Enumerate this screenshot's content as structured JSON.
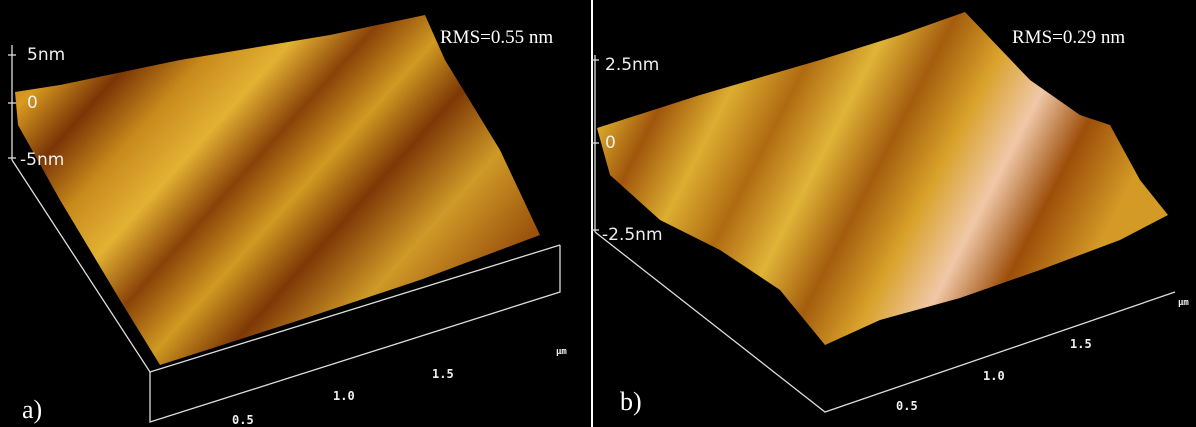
{
  "panels": [
    {
      "label": "a)",
      "rms": "RMS=0.55 nm",
      "z_labels": [
        "5nm",
        "0",
        "-5nm"
      ],
      "x_ticks": [
        "0.5",
        "1.0",
        "1.5"
      ],
      "unit": "μm"
    },
    {
      "label": "b)",
      "rms": "RMS=0.29 nm",
      "z_labels": [
        "2.5nm",
        "0",
        "-2.5nm"
      ],
      "x_ticks": [
        "0.5",
        "1.0",
        "1.5"
      ],
      "unit": "μm"
    }
  ]
}
